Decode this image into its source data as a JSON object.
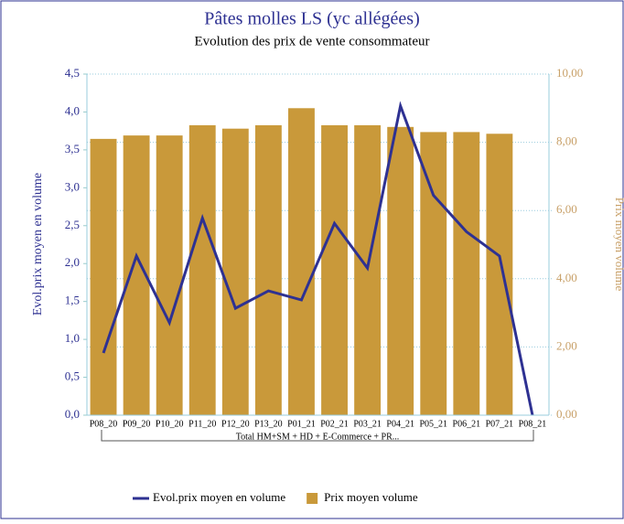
{
  "chart_data": {
    "type": "bar_line",
    "title": "Pâtes molles LS (yc allégées)",
    "subtitle": "Evolution des prix de vente consommateur",
    "y_label": "Evol.prix moyen en volume",
    "y2_label": "Prix moyen volume",
    "x_group_label": "Total HM+SM + HD + E-Commerce + PR...",
    "categories": [
      "P08_20",
      "P09_20",
      "P10_20",
      "P11_20",
      "P12_20",
      "P13_20",
      "P01_21",
      "P02_21",
      "P03_21",
      "P04_21",
      "P05_21",
      "P06_21",
      "P07_21",
      "P08_21"
    ],
    "series": [
      {
        "name": "Evol.prix moyen en volume",
        "type": "line",
        "color": "#2e3192",
        "axis": "y",
        "values": [
          0.82,
          2.1,
          1.22,
          2.6,
          1.41,
          1.64,
          1.52,
          2.53,
          1.94,
          4.08,
          2.9,
          2.42,
          2.1,
          0
        ]
      },
      {
        "name": "Prix moyen volume",
        "type": "bar",
        "color": "#c9993a",
        "axis": "y2",
        "values": [
          8.1,
          8.2,
          8.2,
          8.5,
          8.4,
          8.5,
          9.0,
          8.5,
          8.5,
          8.45,
          8.3,
          8.3,
          8.25,
          null
        ]
      }
    ],
    "ylim": [
      0,
      4.5
    ],
    "yticks": [
      {
        "value": 0,
        "label": "0,0"
      },
      {
        "value": 0.5,
        "label": "0,5"
      },
      {
        "value": 1,
        "label": "1,0"
      },
      {
        "value": 1.5,
        "label": "1,5"
      },
      {
        "value": 2,
        "label": "2,0"
      },
      {
        "value": 2.5,
        "label": "2,5"
      },
      {
        "value": 3,
        "label": "3,0"
      },
      {
        "value": 3.5,
        "label": "3,5"
      },
      {
        "value": 4,
        "label": "4,0"
      },
      {
        "value": 4.5,
        "label": "4,5"
      }
    ],
    "y2lim": [
      0,
      10
    ],
    "y2ticks": [
      {
        "value": 0,
        "label": "0,00"
      },
      {
        "value": 2,
        "label": "2,00"
      },
      {
        "value": 4,
        "label": "4,00"
      },
      {
        "value": 6,
        "label": "6,00"
      },
      {
        "value": 8,
        "label": "8,00"
      },
      {
        "value": 10,
        "label": "10,00"
      }
    ],
    "legend": "bottom"
  }
}
